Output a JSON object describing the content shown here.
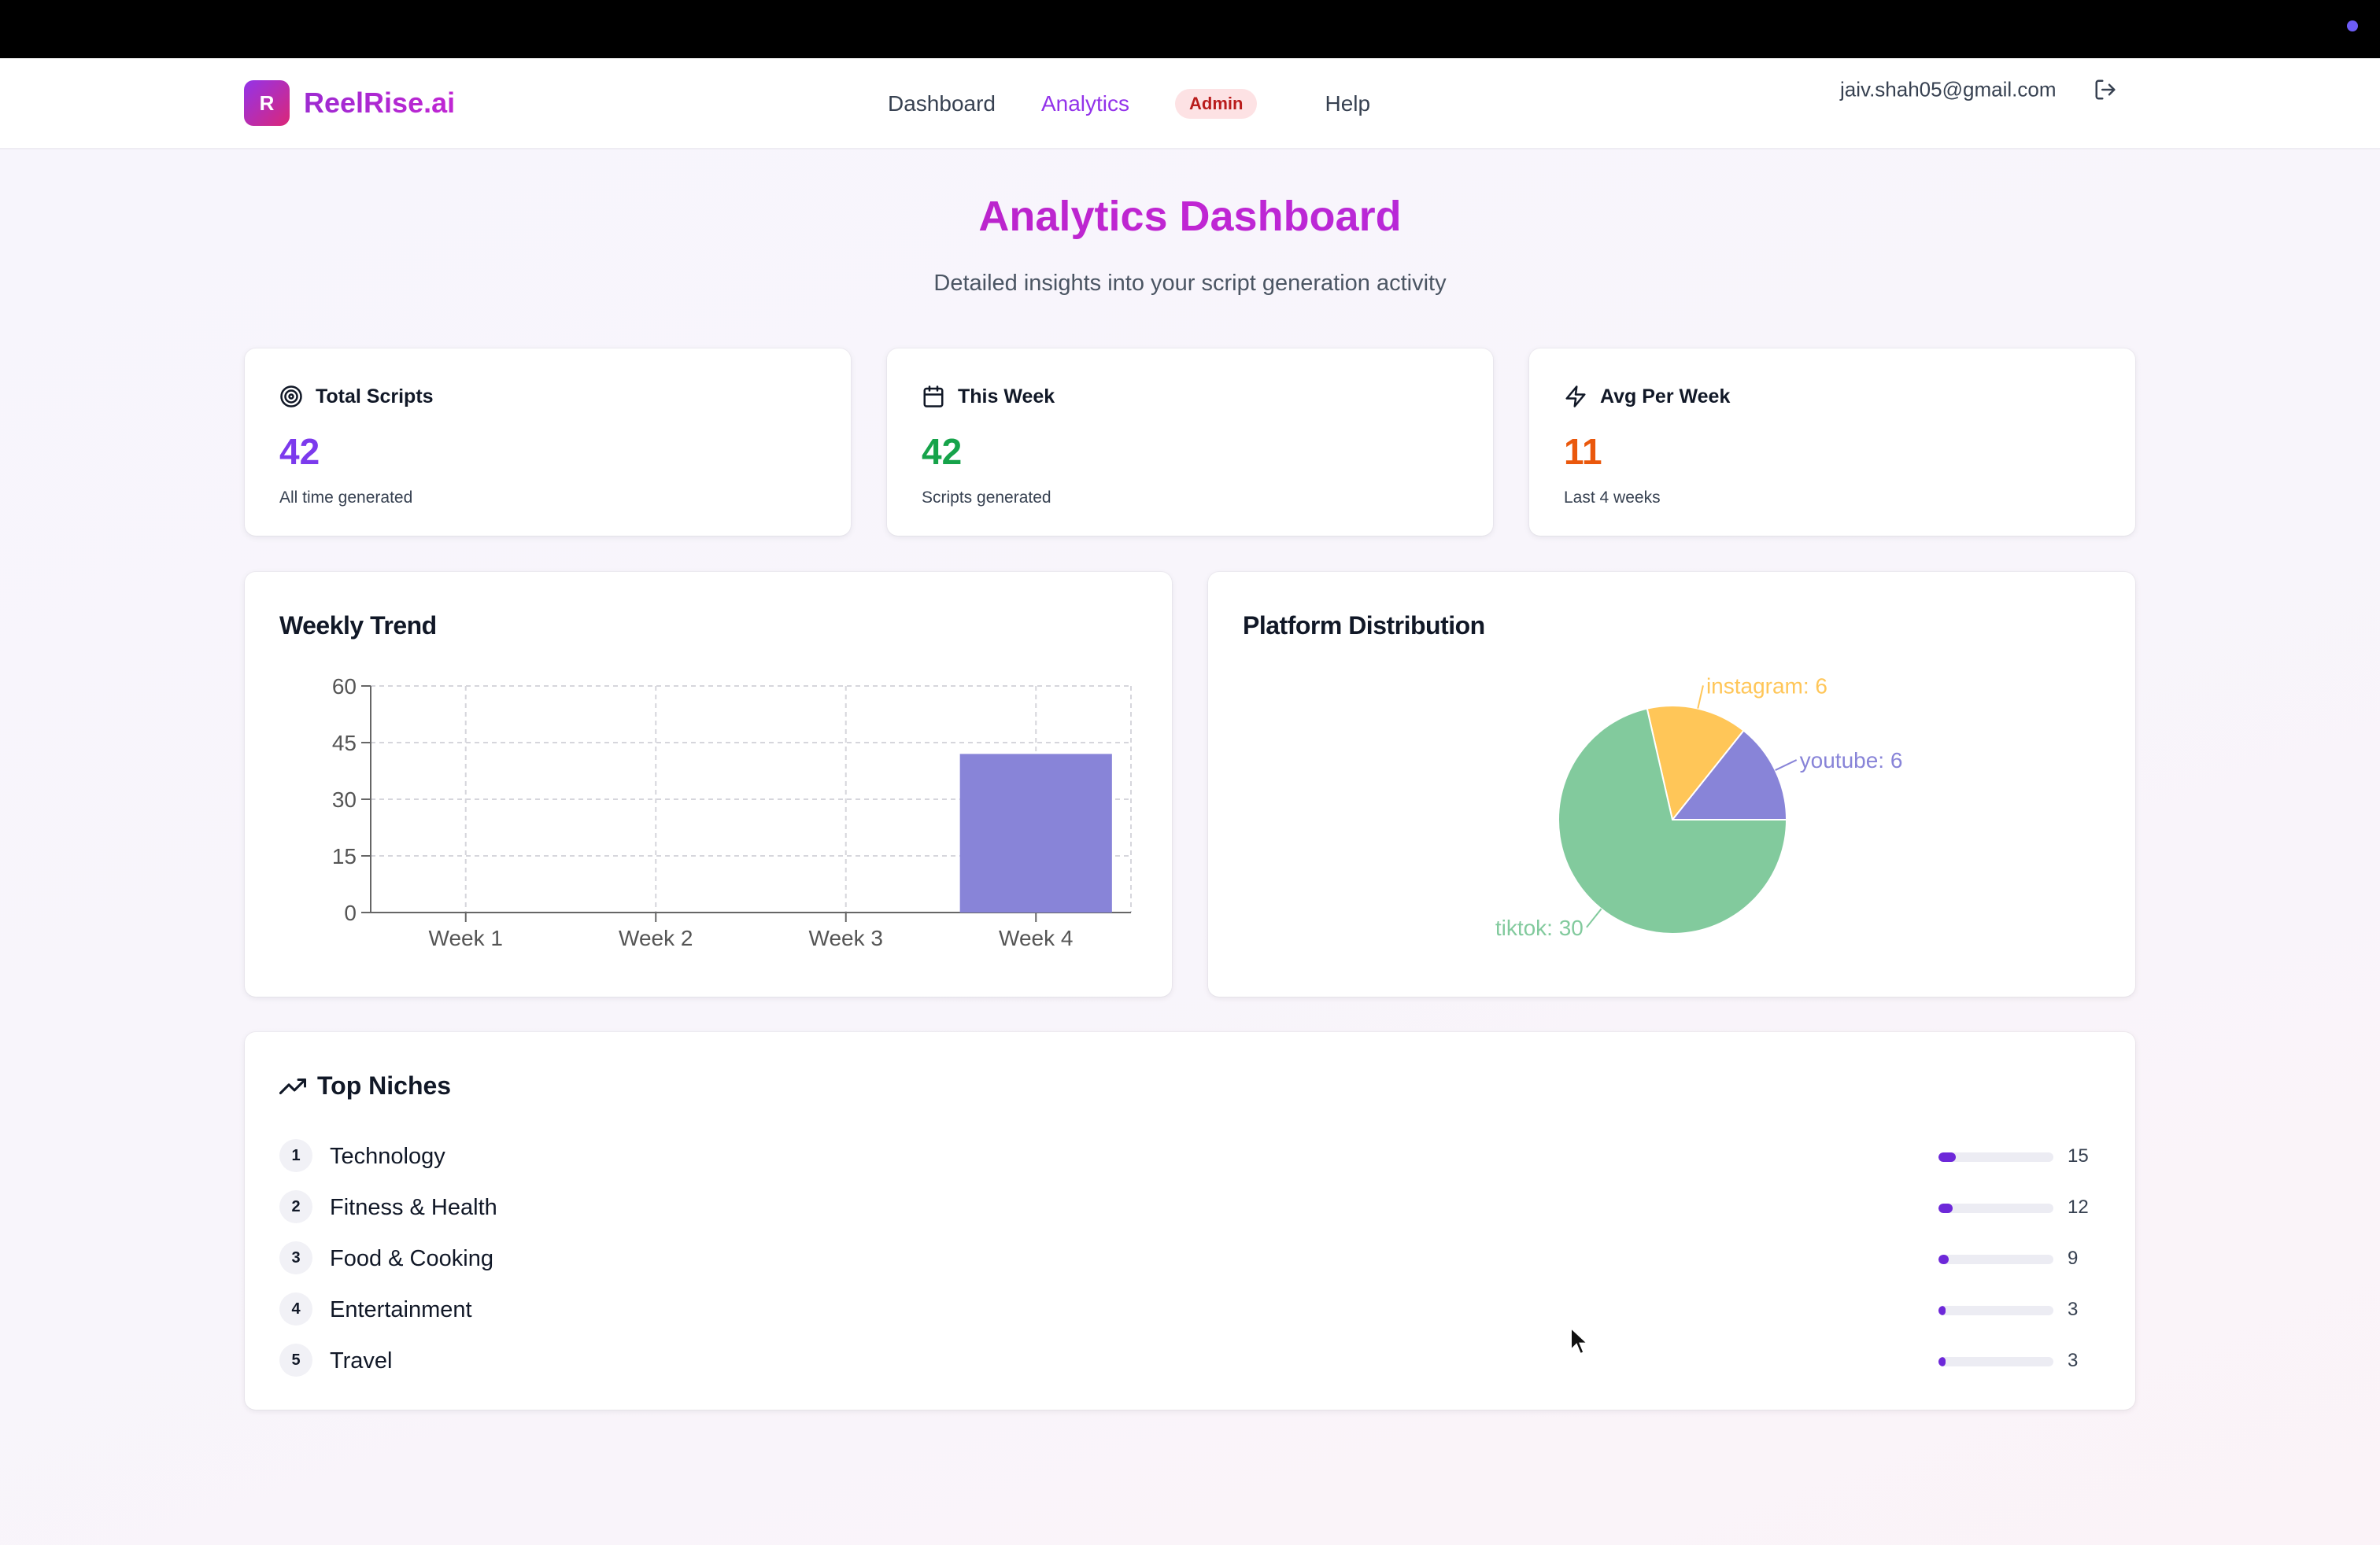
{
  "brand": {
    "logo_letter": "R",
    "name": "ReelRise.ai"
  },
  "nav": {
    "links": [
      {
        "label": "Dashboard",
        "active": false
      },
      {
        "label": "Analytics",
        "active": true
      }
    ],
    "admin_badge": "Admin",
    "help": "Help",
    "user_email": "jaiv.shah05@gmail.com",
    "logout_icon": "logout-icon"
  },
  "header": {
    "title": "Analytics Dashboard",
    "subtitle": "Detailed insights into your script generation activity"
  },
  "stats": [
    {
      "icon": "target-icon",
      "label": "Total Scripts",
      "value": "42",
      "sub": "All time generated",
      "color": "#7c3aed"
    },
    {
      "icon": "calendar-icon",
      "label": "This Week",
      "value": "42",
      "sub": "Scripts generated",
      "color": "#16a34a"
    },
    {
      "icon": "bolt-icon",
      "label": "Avg Per Week",
      "value": "11",
      "sub": "Last 4 weeks",
      "color": "#ea580c"
    }
  ],
  "weekly_trend": {
    "title": "Weekly Trend"
  },
  "platform_distribution": {
    "title": "Platform Distribution"
  },
  "chart_data": [
    {
      "type": "bar",
      "title": "Weekly Trend",
      "categories": [
        "Week 1",
        "Week 2",
        "Week 3",
        "Week 4"
      ],
      "values": [
        0,
        0,
        0,
        42
      ],
      "ylim": [
        0,
        60
      ],
      "yticks": [
        0,
        15,
        30,
        45,
        60
      ],
      "grid": true,
      "color": "#8884d8"
    },
    {
      "type": "pie",
      "title": "Platform Distribution",
      "slices": [
        {
          "label": "youtube",
          "value": 6,
          "color": "#8884d8"
        },
        {
          "label": "instagram",
          "value": 6,
          "color": "#ffc658"
        },
        {
          "label": "tiktok",
          "value": 30,
          "color": "#82ca9d"
        }
      ]
    }
  ],
  "top_niches": {
    "title": "Top Niches",
    "icon": "trending-up-icon",
    "max": 100,
    "items": [
      {
        "rank": "1",
        "name": "Technology",
        "count": "15",
        "value": 15
      },
      {
        "rank": "2",
        "name": "Fitness & Health",
        "count": "12",
        "value": 12
      },
      {
        "rank": "3",
        "name": "Food & Cooking",
        "count": "9",
        "value": 9
      },
      {
        "rank": "4",
        "name": "Entertainment",
        "count": "3",
        "value": 3
      },
      {
        "rank": "5",
        "name": "Travel",
        "count": "3",
        "value": 3
      }
    ]
  }
}
